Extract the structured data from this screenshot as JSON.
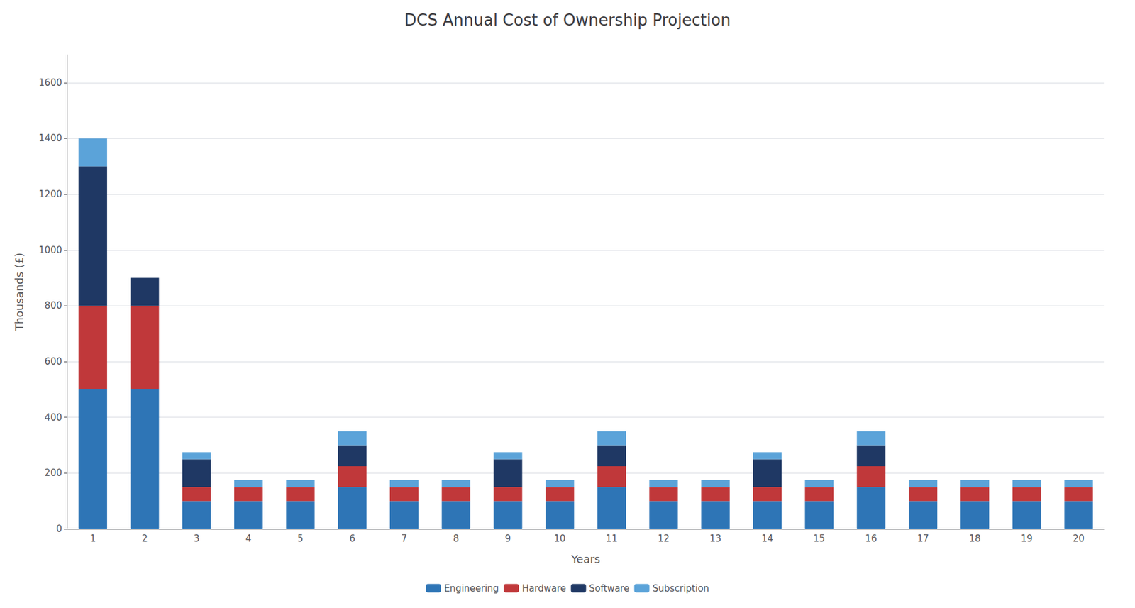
{
  "chart_data": {
    "type": "bar",
    "title": "DCS Annual Cost of Ownership Projection",
    "xlabel": "Years",
    "ylabel": "Thousands (£)",
    "categories": [
      "1",
      "2",
      "3",
      "4",
      "5",
      "6",
      "7",
      "8",
      "9",
      "10",
      "11",
      "12",
      "13",
      "14",
      "15",
      "16",
      "17",
      "18",
      "19",
      "20"
    ],
    "series": [
      {
        "name": "Engineering",
        "color": "#2e75b6",
        "values": [
          500,
          500,
          100,
          100,
          100,
          150,
          100,
          100,
          100,
          100,
          150,
          100,
          100,
          100,
          100,
          150,
          100,
          100,
          100,
          100
        ]
      },
      {
        "name": "Hardware",
        "color": "#c0383a",
        "values": [
          300,
          300,
          50,
          50,
          50,
          75,
          50,
          50,
          50,
          50,
          75,
          50,
          50,
          50,
          50,
          75,
          50,
          50,
          50,
          50
        ]
      },
      {
        "name": "Software",
        "color": "#1f3864",
        "values": [
          500,
          100,
          100,
          0,
          0,
          75,
          0,
          0,
          100,
          0,
          75,
          0,
          0,
          100,
          0,
          75,
          0,
          0,
          0,
          0
        ]
      },
      {
        "name": "Subscription",
        "color": "#5ba3d9",
        "values": [
          100,
          0,
          25,
          25,
          25,
          50,
          25,
          25,
          25,
          25,
          50,
          25,
          25,
          25,
          25,
          50,
          25,
          25,
          25,
          25
        ]
      }
    ],
    "stacked": true,
    "ylim": [
      0,
      1700
    ],
    "yticks": [
      0,
      200,
      400,
      600,
      800,
      1000,
      1200,
      1400,
      1600
    ],
    "grid": true,
    "legend": "bottom"
  }
}
